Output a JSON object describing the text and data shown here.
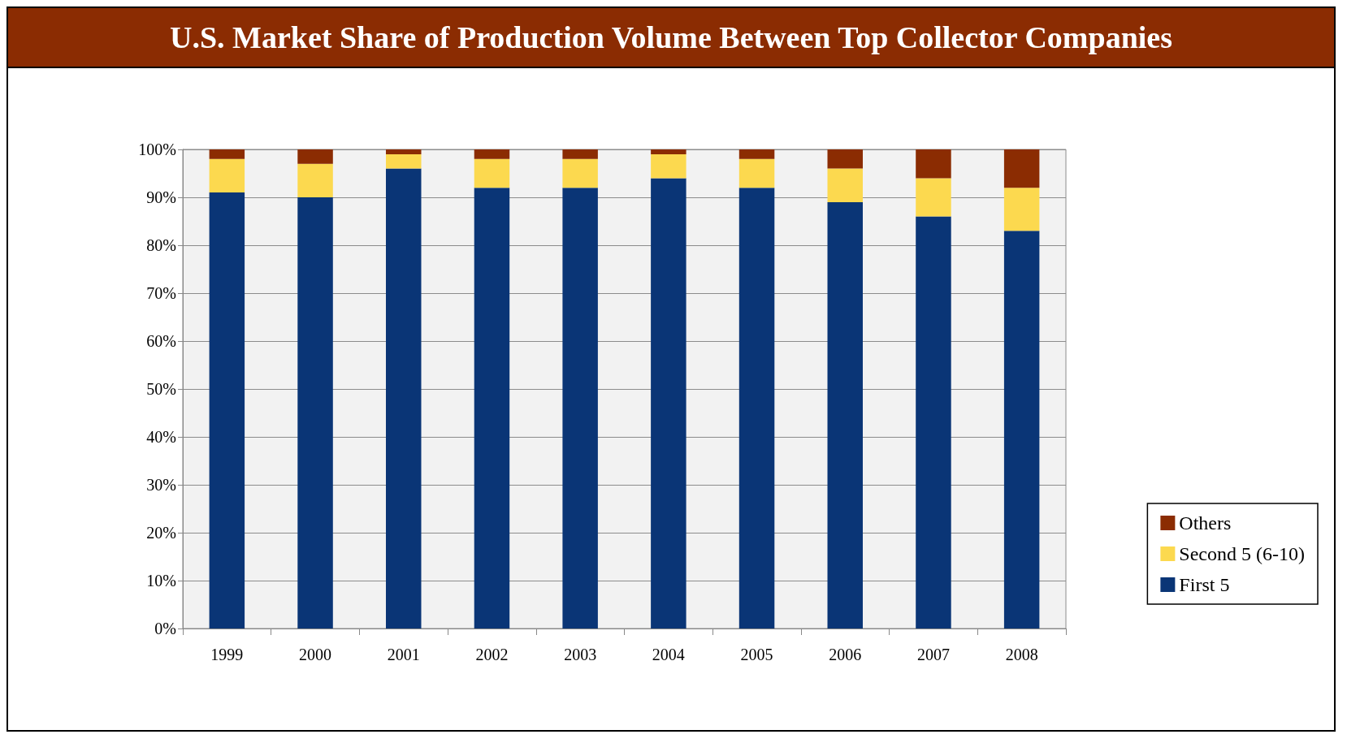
{
  "chart_data": {
    "type": "bar",
    "title": "U.S. Market Share of Production Volume Between Top Collector Companies",
    "categories": [
      "1999",
      "2000",
      "2001",
      "2002",
      "2003",
      "2004",
      "2005",
      "2006",
      "2007",
      "2008"
    ],
    "stacked": true,
    "series": [
      {
        "name": "First 5",
        "color": "#0a3576",
        "values": [
          91,
          90,
          96,
          92,
          92,
          94,
          92,
          89,
          86,
          83
        ]
      },
      {
        "name": "Second 5 (6-10)",
        "color": "#fcd94f",
        "values": [
          7,
          7,
          3,
          6,
          6,
          5,
          6,
          7,
          8,
          9
        ]
      },
      {
        "name": "Others",
        "color": "#8b2c02",
        "values": [
          2,
          3,
          1,
          2,
          2,
          1,
          2,
          4,
          6,
          8
        ]
      }
    ],
    "ylim": [
      0,
      100
    ],
    "yticks": [
      {
        "value": 0,
        "label": "0%"
      },
      {
        "value": 10,
        "label": "10%"
      },
      {
        "value": 20,
        "label": "20%"
      },
      {
        "value": 30,
        "label": "30%"
      },
      {
        "value": 40,
        "label": "40%"
      },
      {
        "value": 50,
        "label": "50%"
      },
      {
        "value": 60,
        "label": "60%"
      },
      {
        "value": 70,
        "label": "70%"
      },
      {
        "value": 80,
        "label": "80%"
      },
      {
        "value": 90,
        "label": "90%"
      },
      {
        "value": 100,
        "label": "100%"
      }
    ],
    "grid": "y",
    "legend": "right"
  }
}
